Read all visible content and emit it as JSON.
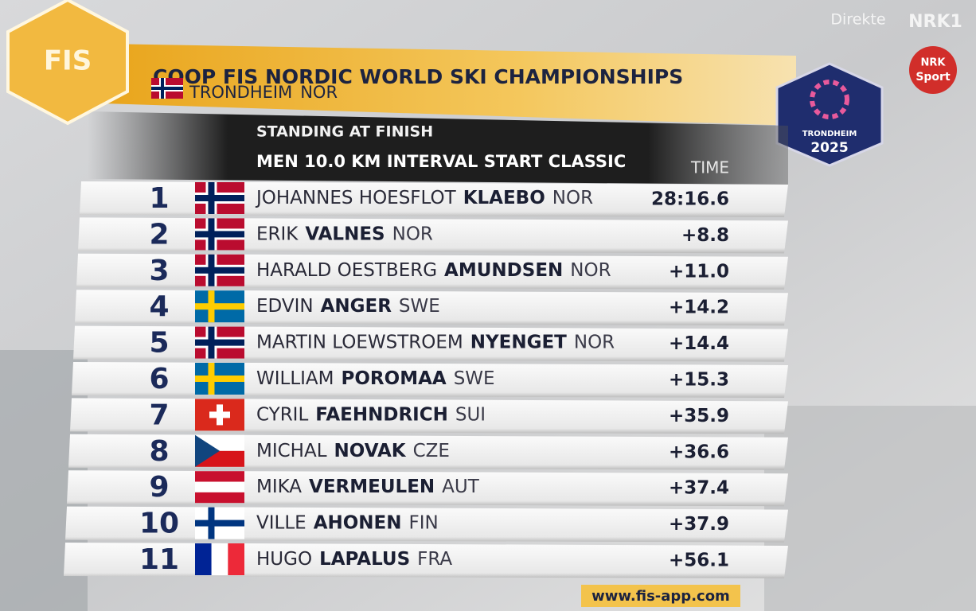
{
  "broadcast": {
    "live": "Direkte",
    "channel": "NRK1",
    "sport_logo": [
      "NRK",
      "Sport"
    ]
  },
  "header": {
    "logo": "FIS",
    "title": "COOP FIS NORDIC WORLD SKI CHAMPIONSHIPS",
    "location": "TRONDHEIM",
    "country": "NOR",
    "event_logo": [
      "TRONDHEIM",
      "2025"
    ]
  },
  "board": {
    "subtitle": "STANDING AT FINISH",
    "event": "MEN 10.0 KM INTERVAL START CLASSIC",
    "time_header": "TIME"
  },
  "table": {
    "rows": [
      [
        "1",
        "JOHANNES HOESFLOT",
        "KLAEBO",
        "NOR",
        "28:16.6"
      ],
      [
        "2",
        "ERIK",
        "VALNES",
        "NOR",
        "+8.8"
      ],
      [
        "3",
        "HARALD OESTBERG",
        "AMUNDSEN",
        "NOR",
        "+11.0"
      ],
      [
        "4",
        "EDVIN",
        "ANGER",
        "SWE",
        "+14.2"
      ],
      [
        "5",
        "MARTIN LOEWSTROEM",
        "NYENGET",
        "NOR",
        "+14.4"
      ],
      [
        "6",
        "WILLIAM",
        "POROMAA",
        "SWE",
        "+15.3"
      ],
      [
        "7",
        "CYRIL",
        "FAEHNDRICH",
        "SUI",
        "+35.9"
      ],
      [
        "8",
        "MICHAL",
        "NOVAK",
        "CZE",
        "+36.6"
      ],
      [
        "9",
        "MIKA",
        "VERMEULEN",
        "AUT",
        "+37.4"
      ],
      [
        "10",
        "VILLE",
        "AHONEN",
        "FIN",
        "+37.9"
      ],
      [
        "11",
        "HUGO",
        "LAPALUS",
        "FRA",
        "+56.1"
      ]
    ]
  },
  "footer": {
    "url": "www.fis-app.com"
  }
}
